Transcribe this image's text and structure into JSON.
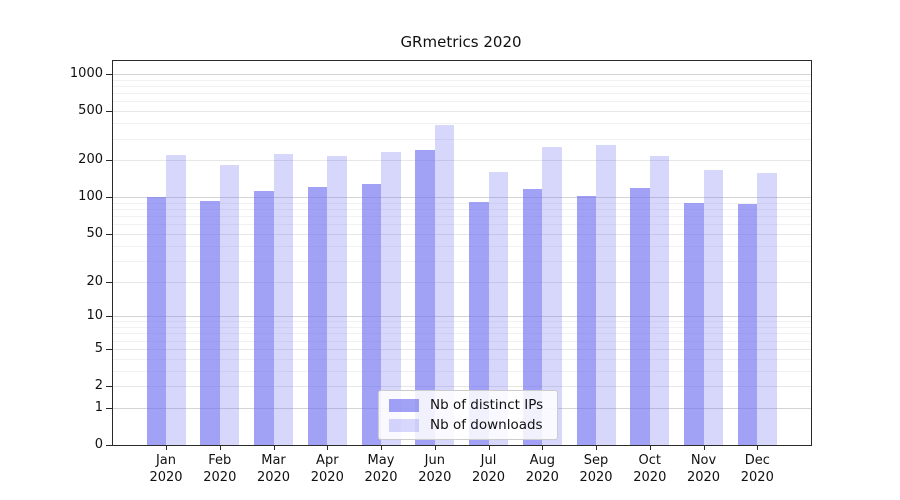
{
  "chart_data": {
    "type": "bar",
    "title": "GRmetrics 2020",
    "categories": [
      "Jan",
      "Feb",
      "Mar",
      "Apr",
      "May",
      "Jun",
      "Jul",
      "Aug",
      "Sep",
      "Oct",
      "Nov",
      "Dec"
    ],
    "year_label": "2020",
    "series": [
      {
        "name": "Nb of distinct IPs",
        "color": "rgba(113,113,240,0.66)",
        "values": [
          100,
          94,
          113,
          121,
          127,
          242,
          91,
          117,
          103,
          118,
          90,
          88
        ]
      },
      {
        "name": "Nb of downloads",
        "color": "rgba(113,113,240,0.28)",
        "values": [
          220,
          183,
          224,
          215,
          235,
          390,
          161,
          257,
          267,
          217,
          167,
          157
        ]
      }
    ],
    "yscale": "symlog",
    "ylim": [
      0,
      1276
    ],
    "yticks": [
      0,
      1,
      2,
      5,
      10,
      20,
      50,
      100,
      200,
      500,
      1000
    ],
    "grid": "both",
    "legend_position": "lower center"
  },
  "colors": {
    "grid_major": "#d4d4d4",
    "grid_mid": "#e7e7e7",
    "grid_minor": "#f1f1f1",
    "spine": "#2a2a2a",
    "legend_border": "#cccccc"
  }
}
